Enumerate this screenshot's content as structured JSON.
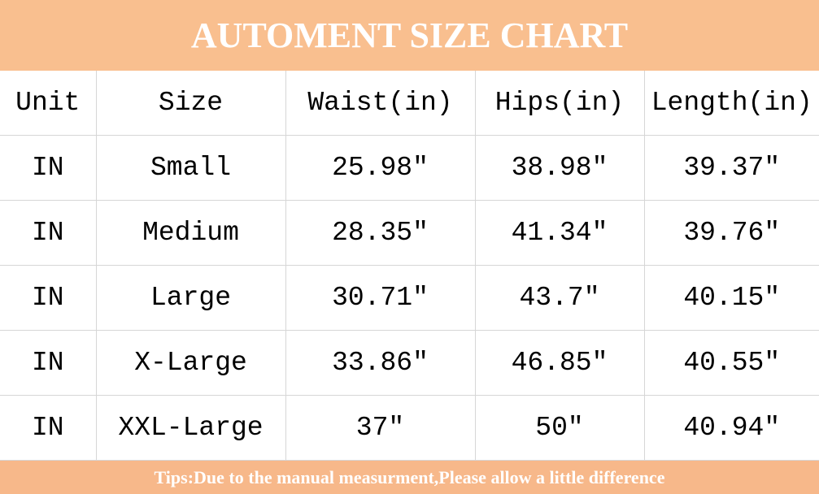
{
  "title": "AUTOMENT SIZE CHART",
  "columns": [
    "Unit",
    "Size",
    "Waist(in)",
    "Hips(in)",
    "Length(in)"
  ],
  "rows": [
    [
      "IN",
      "Small",
      "25.98″",
      "38.98″",
      "39.37″"
    ],
    [
      "IN",
      "Medium",
      "28.35″",
      "41.34″",
      "39.76″"
    ],
    [
      "IN",
      "Large",
      "30.71″",
      "43.7″",
      "40.15″"
    ],
    [
      "IN",
      "X-Large",
      "33.86″",
      "46.85″",
      "40.55″"
    ],
    [
      "IN",
      "XXL-Large",
      "37″",
      "50″",
      "40.94″"
    ]
  ],
  "footer": "Tips:Due to the manual measurment,Please allow a little difference",
  "colors": {
    "banner": "#F9BF8F",
    "footer": "#F7B88A",
    "grid": "#d6d6d6"
  }
}
